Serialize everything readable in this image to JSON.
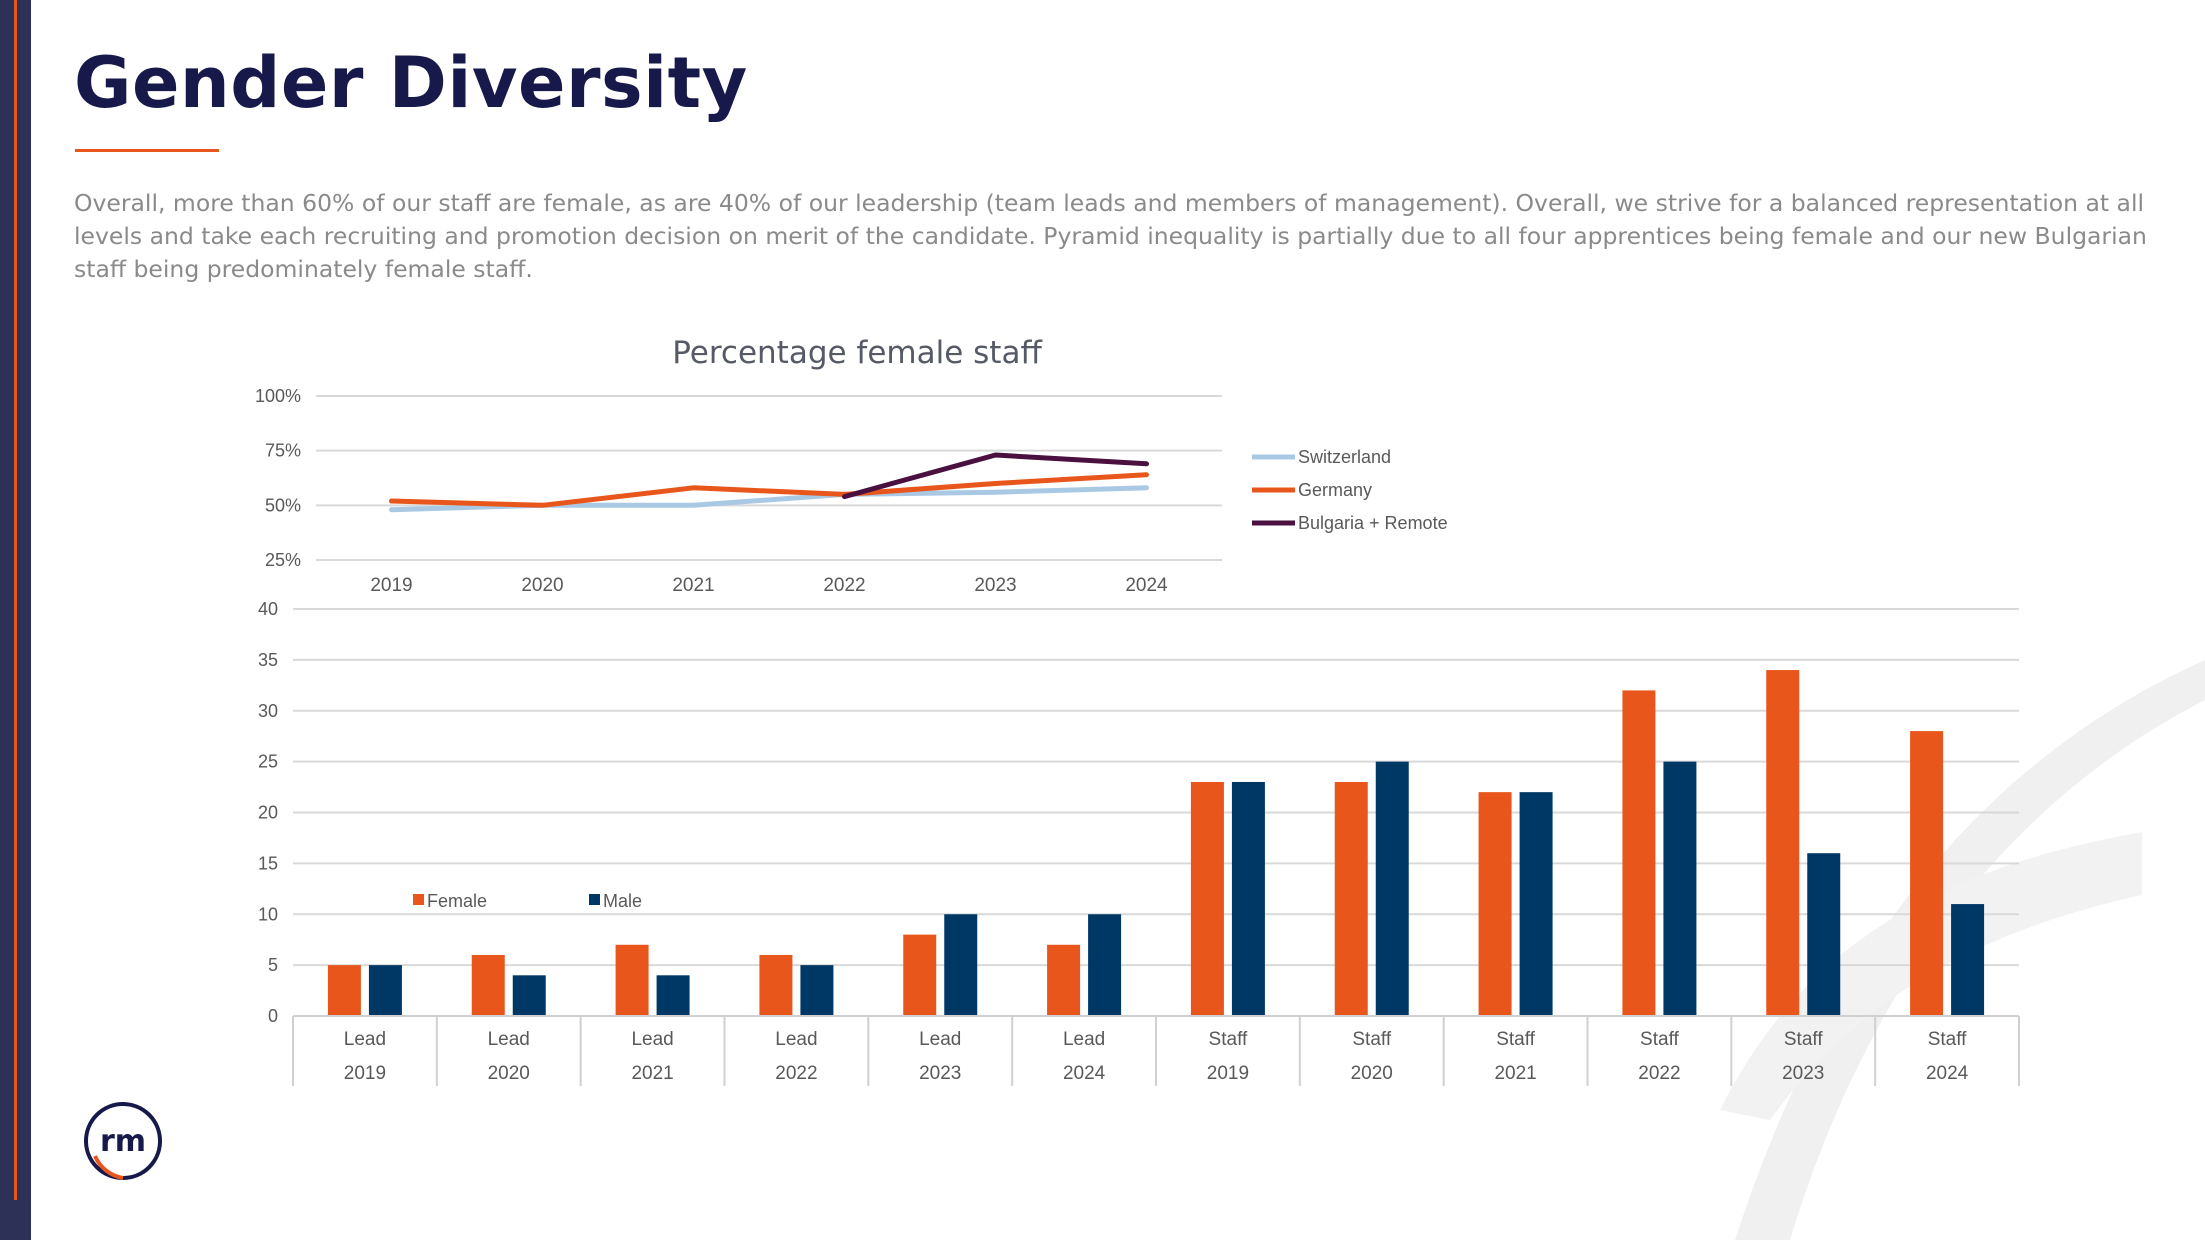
{
  "page": {
    "title": "Gender Diversity",
    "intro": "Overall, more than 60% of our staff are female, as are 40% of our leadership (team leads and members of management). Overall, we strive for a balanced representation at all levels and take each recruiting and promotion decision on merit of the candidate. Pyramid inequality is partially due to all four apprentices being female and our new Bulgarian staff being predominately female staff.",
    "accent_color": "#e8561b",
    "brand_color": "#16194a",
    "logo_text": "rm"
  },
  "chart_data": [
    {
      "type": "line",
      "title": "Percentage female staff",
      "x": [
        "2019",
        "2020",
        "2021",
        "2022",
        "2023",
        "2024"
      ],
      "yticks": [
        "25%",
        "50%",
        "75%",
        "100%"
      ],
      "ylim": [
        25,
        100
      ],
      "grid": true,
      "legend": "right",
      "series": [
        {
          "name": "Switzerland",
          "color": "#a9c8e4",
          "values": [
            48,
            50,
            50,
            55,
            56,
            58
          ]
        },
        {
          "name": "Germany",
          "color": "#e8561b",
          "values": [
            52,
            50,
            58,
            55,
            60,
            64
          ]
        },
        {
          "name": "Bulgaria + Remote",
          "color": "#4a1040",
          "values": [
            null,
            null,
            null,
            54,
            73,
            69
          ]
        }
      ]
    },
    {
      "type": "bar",
      "categories": [
        {
          "group": "Lead",
          "year": "2019"
        },
        {
          "group": "Lead",
          "year": "2020"
        },
        {
          "group": "Lead",
          "year": "2021"
        },
        {
          "group": "Lead",
          "year": "2022"
        },
        {
          "group": "Lead",
          "year": "2023"
        },
        {
          "group": "Lead",
          "year": "2024"
        },
        {
          "group": "Staff",
          "year": "2019"
        },
        {
          "group": "Staff",
          "year": "2020"
        },
        {
          "group": "Staff",
          "year": "2021"
        },
        {
          "group": "Staff",
          "year": "2022"
        },
        {
          "group": "Staff",
          "year": "2023"
        },
        {
          "group": "Staff",
          "year": "2024"
        }
      ],
      "yticks": [
        "0",
        "5",
        "10",
        "15",
        "20",
        "25",
        "30",
        "35",
        "40"
      ],
      "ylim": [
        0,
        40
      ],
      "grid": true,
      "legend": "inside-left",
      "series": [
        {
          "name": "Female",
          "color": "#e8561b",
          "values": [
            5,
            6,
            7,
            6,
            8,
            7,
            23,
            23,
            22,
            32,
            34,
            28
          ]
        },
        {
          "name": "Male",
          "color": "#003865",
          "values": [
            5,
            4,
            4,
            5,
            10,
            10,
            23,
            25,
            22,
            25,
            16,
            11
          ]
        }
      ]
    }
  ]
}
